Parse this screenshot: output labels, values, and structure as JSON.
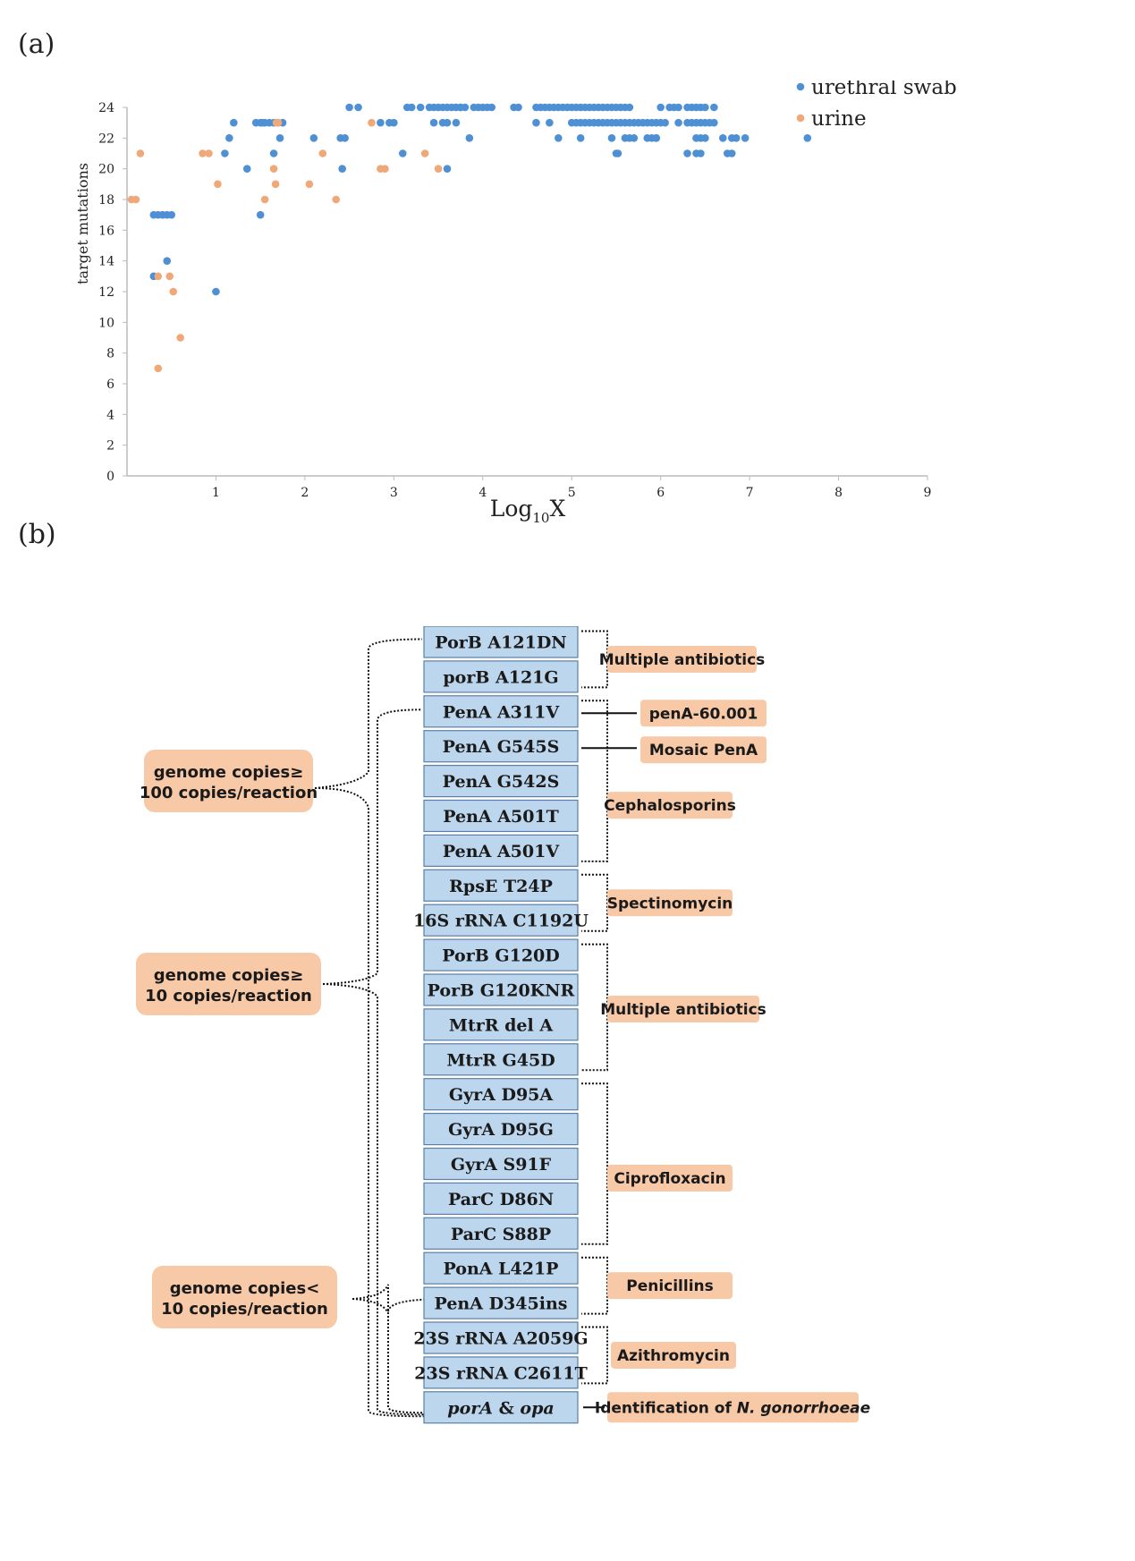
{
  "panels": {
    "a": "(a)",
    "b": "(b)"
  },
  "chart_data": {
    "type": "scatter",
    "title": "",
    "xlabel": "Log10X",
    "ylabel": "target mutations",
    "xlim": [
      0,
      9
    ],
    "ylim": [
      0,
      24
    ],
    "xticks": [
      "1",
      "2",
      "3",
      "4",
      "5",
      "6",
      "7",
      "8",
      "9"
    ],
    "yticks": [
      "0",
      "2",
      "4",
      "6",
      "8",
      "10",
      "12",
      "14",
      "16",
      "18",
      "20",
      "22",
      "24"
    ],
    "legend": "top-right",
    "grid": false,
    "series": [
      {
        "name": "urethral swab",
        "color": "#4f8fd4",
        "x": [
          0.3,
          0.35,
          0.4,
          0.45,
          0.5,
          0.3,
          0.45,
          1.0,
          1.1,
          1.15,
          1.2,
          1.35,
          1.45,
          1.5,
          1.52,
          1.55,
          1.6,
          1.65,
          1.7,
          1.72,
          1.75,
          1.5,
          1.65,
          2.1,
          2.4,
          2.45,
          2.5,
          2.42,
          2.6,
          2.85,
          2.95,
          3.0,
          3.1,
          3.15,
          3.2,
          3.3,
          3.4,
          3.45,
          3.5,
          3.55,
          3.6,
          3.65,
          3.7,
          3.75,
          3.8,
          3.9,
          3.95,
          4.0,
          4.05,
          4.1,
          3.45,
          3.55,
          3.7,
          3.75,
          3.85,
          3.6,
          4.35,
          4.4,
          4.6,
          4.65,
          4.7,
          4.75,
          4.8,
          4.85,
          4.9,
          4.95,
          5.0,
          5.05,
          5.1,
          5.15,
          5.2,
          5.25,
          5.3,
          5.35,
          5.4,
          5.45,
          5.5,
          5.55,
          5.6,
          5.65,
          4.6,
          4.75,
          5.0,
          5.05,
          5.1,
          5.15,
          5.2,
          5.25,
          5.3,
          5.35,
          5.4,
          5.45,
          5.5,
          5.55,
          5.6,
          5.65,
          5.7,
          5.75,
          5.8,
          5.85,
          5.9,
          5.95,
          6.0,
          6.05,
          4.85,
          5.1,
          5.45,
          5.6,
          5.65,
          5.7,
          5.9,
          5.95,
          5.5,
          5.52,
          5.85,
          5.95,
          6.0,
          6.1,
          6.15,
          6.2,
          6.3,
          6.35,
          6.4,
          6.45,
          6.5,
          6.6,
          6.2,
          6.3,
          6.35,
          6.4,
          6.45,
          6.5,
          6.55,
          6.6,
          6.4,
          6.45,
          6.5,
          6.3,
          6.4,
          6.45,
          6.7,
          6.8,
          6.75,
          6.85,
          6.95,
          6.8,
          7.65,
          3.6
        ],
        "y": [
          13,
          17,
          17,
          17,
          17,
          17,
          14,
          12,
          21,
          22,
          23,
          20,
          23,
          23,
          23,
          23,
          23,
          21,
          23,
          22,
          23,
          17,
          23,
          22,
          22,
          22,
          24,
          20,
          24,
          23,
          23,
          23,
          21,
          24,
          24,
          24,
          24,
          24,
          24,
          24,
          24,
          24,
          24,
          24,
          24,
          24,
          24,
          24,
          24,
          24,
          23,
          23,
          23,
          24,
          22,
          23,
          24,
          24,
          24,
          24,
          24,
          24,
          24,
          24,
          24,
          24,
          24,
          24,
          24,
          24,
          24,
          24,
          24,
          24,
          24,
          24,
          24,
          24,
          24,
          24,
          23,
          23,
          23,
          23,
          23,
          23,
          23,
          23,
          23,
          23,
          23,
          23,
          23,
          23,
          23,
          23,
          23,
          23,
          23,
          23,
          23,
          23,
          23,
          23,
          22,
          22,
          22,
          22,
          22,
          22,
          22,
          22,
          21,
          21,
          22,
          22,
          24,
          24,
          24,
          24,
          24,
          24,
          24,
          24,
          24,
          24,
          23,
          23,
          23,
          23,
          23,
          23,
          23,
          23,
          22,
          22,
          22,
          21,
          21,
          21,
          22,
          22,
          21,
          22,
          22,
          21,
          22,
          20
        ]
      },
      {
        "name": "urine",
        "color": "#f0a878",
        "x": [
          0.05,
          0.1,
          0.15,
          0.35,
          0.48,
          0.52,
          0.6,
          0.35,
          0.85,
          0.92,
          1.02,
          1.55,
          1.65,
          1.68,
          1.7,
          1.67,
          2.05,
          2.2,
          2.35,
          2.75,
          2.85,
          2.9,
          3.35,
          3.5
        ],
        "y": [
          18,
          18,
          21,
          13,
          13,
          12,
          9,
          7,
          21,
          21,
          19,
          18,
          20,
          23,
          23,
          19,
          19,
          21,
          18,
          23,
          20,
          20,
          21,
          20
        ]
      }
    ]
  },
  "diagram": {
    "genes": [
      "PorB A121DN",
      "porB A121G",
      "PenA A311V",
      "PenA G545S",
      "PenA G542S",
      "PenA A501T",
      "PenA A501V",
      "RpsE T24P",
      "16S rRNA C1192U",
      "PorB G120D",
      "PorB G120KNR",
      "MtrR del A",
      "MtrR G45D",
      "GyrA D95A",
      "GyrA D95G",
      "GyrA S91F",
      "ParC D86N",
      "ParC S88P",
      "PonA L421P",
      "PenA D345ins",
      "23S rRNA A2059G",
      "23S rRNA C2611T"
    ],
    "last_gene": {
      "part1": "porA",
      "part2": " & ",
      "part3": "opa"
    },
    "categories": [
      "Multiple antibiotics",
      "penA-60.001",
      "Mosaic PenA",
      "Cephalosporins",
      "Spectinomycin",
      "Multiple antibiotics",
      "Ciprofloxacin",
      "Penicillins",
      "Azithromycin"
    ],
    "identification": {
      "prefix": "Identification of ",
      "species": "N. gonorrhoeae"
    },
    "groups": [
      {
        "line1": "genome copies≥",
        "line2": "100 copies/reaction"
      },
      {
        "line1": "genome copies≥",
        "line2": "10 copies/reaction"
      },
      {
        "line1": "genome copies<",
        "line2": "10 copies/reaction"
      }
    ]
  }
}
